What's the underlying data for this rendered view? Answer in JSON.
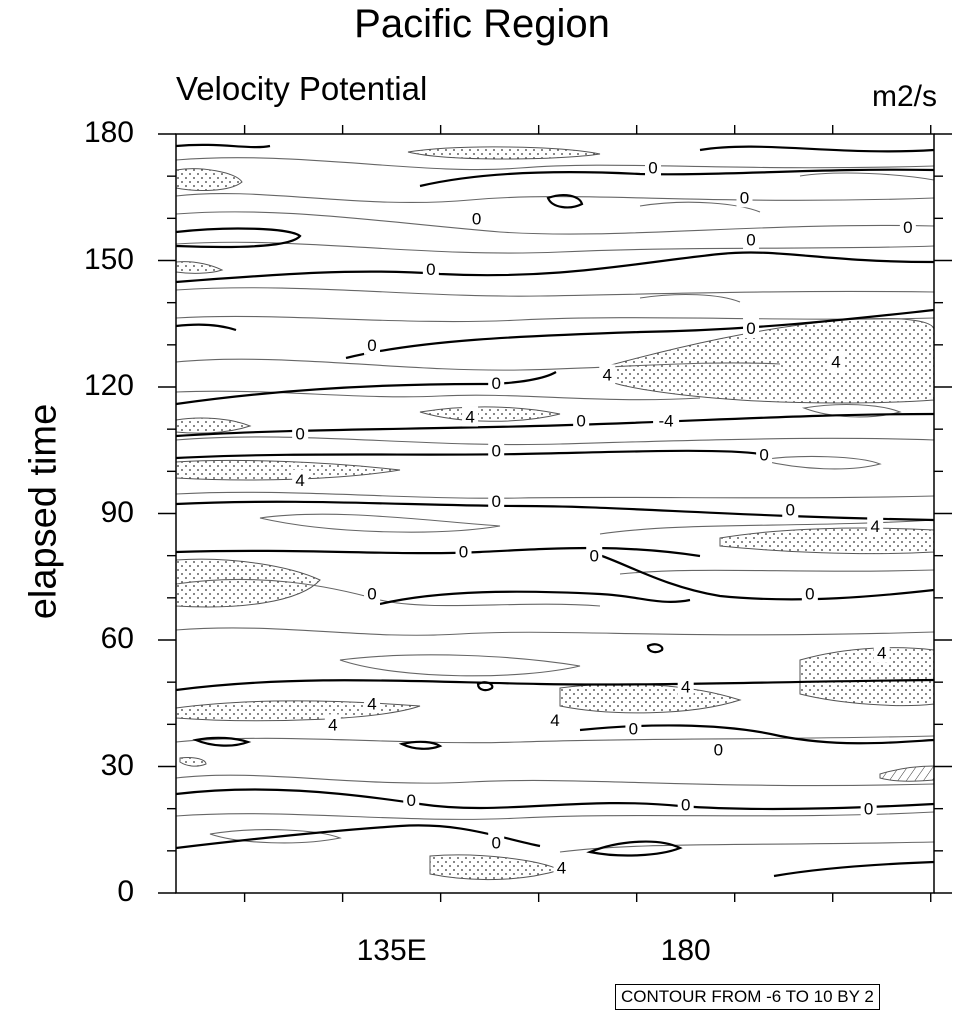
{
  "chart_data": {
    "type": "contour",
    "title": "Pacific Region",
    "subtitle_left": "Velocity Potential",
    "subtitle_right": "m2/s",
    "ylabel": "elapsed time",
    "xlabel": "",
    "y_ticks": [
      0,
      30,
      60,
      90,
      120,
      150,
      180
    ],
    "x_tick_labels": [
      "135E",
      "180"
    ],
    "x_tick_values": [
      135,
      180
    ],
    "xlim": [
      102,
      218
    ],
    "ylim": [
      0,
      180
    ],
    "contour_note": "CONTOUR FROM -6 TO 10 BY 2",
    "contour_levels": {
      "min": -6,
      "max": 10,
      "step": 2
    },
    "shading": "stippled where >= 4, hatched where <= -4",
    "zero_line_labels": [
      {
        "text": "0",
        "x": 175,
        "y": 172
      },
      {
        "text": "0",
        "x": 189,
        "y": 165
      },
      {
        "text": "0",
        "x": 214,
        "y": 158
      },
      {
        "text": "0",
        "x": 148,
        "y": 160
      },
      {
        "text": "0",
        "x": 190,
        "y": 155
      },
      {
        "text": "0",
        "x": 141,
        "y": 148
      },
      {
        "text": "0",
        "x": 190,
        "y": 134
      },
      {
        "text": "0",
        "x": 132,
        "y": 130
      },
      {
        "text": "0",
        "x": 151,
        "y": 121
      },
      {
        "text": "0",
        "x": 164,
        "y": 112
      },
      {
        "text": "0",
        "x": 121,
        "y": 109
      },
      {
        "text": "0",
        "x": 151,
        "y": 105
      },
      {
        "text": "0",
        "x": 192,
        "y": 104
      },
      {
        "text": "0",
        "x": 151,
        "y": 93
      },
      {
        "text": "0",
        "x": 196,
        "y": 91
      },
      {
        "text": "0",
        "x": 146,
        "y": 81
      },
      {
        "text": "0",
        "x": 166,
        "y": 80
      },
      {
        "text": "0",
        "x": 132,
        "y": 71
      },
      {
        "text": "0",
        "x": 199,
        "y": 71
      },
      {
        "text": "0",
        "x": 172,
        "y": 39
      },
      {
        "text": "0",
        "x": 185,
        "y": 34
      },
      {
        "text": "0",
        "x": 138,
        "y": 22
      },
      {
        "text": "0",
        "x": 180,
        "y": 21
      },
      {
        "text": "0",
        "x": 208,
        "y": 20
      },
      {
        "text": "0",
        "x": 151,
        "y": 12
      }
    ],
    "four_line_labels": [
      {
        "text": "4",
        "x": 203,
        "y": 126
      },
      {
        "text": "4",
        "x": 168,
        "y": 123
      },
      {
        "text": "4",
        "x": 147,
        "y": 113
      },
      {
        "text": "4",
        "x": 121,
        "y": 98
      },
      {
        "text": "4",
        "x": 209,
        "y": 87
      },
      {
        "text": "4",
        "x": 210,
        "y": 57
      },
      {
        "text": "4",
        "x": 180,
        "y": 49
      },
      {
        "text": "4",
        "x": 132,
        "y": 45
      },
      {
        "text": "4",
        "x": 126,
        "y": 40
      },
      {
        "text": "4",
        "x": 160,
        "y": 41
      },
      {
        "text": "4",
        "x": 161,
        "y": 6
      }
    ],
    "neg_four_labels": [
      {
        "text": "-4",
        "x": 177,
        "y": 112
      }
    ]
  }
}
